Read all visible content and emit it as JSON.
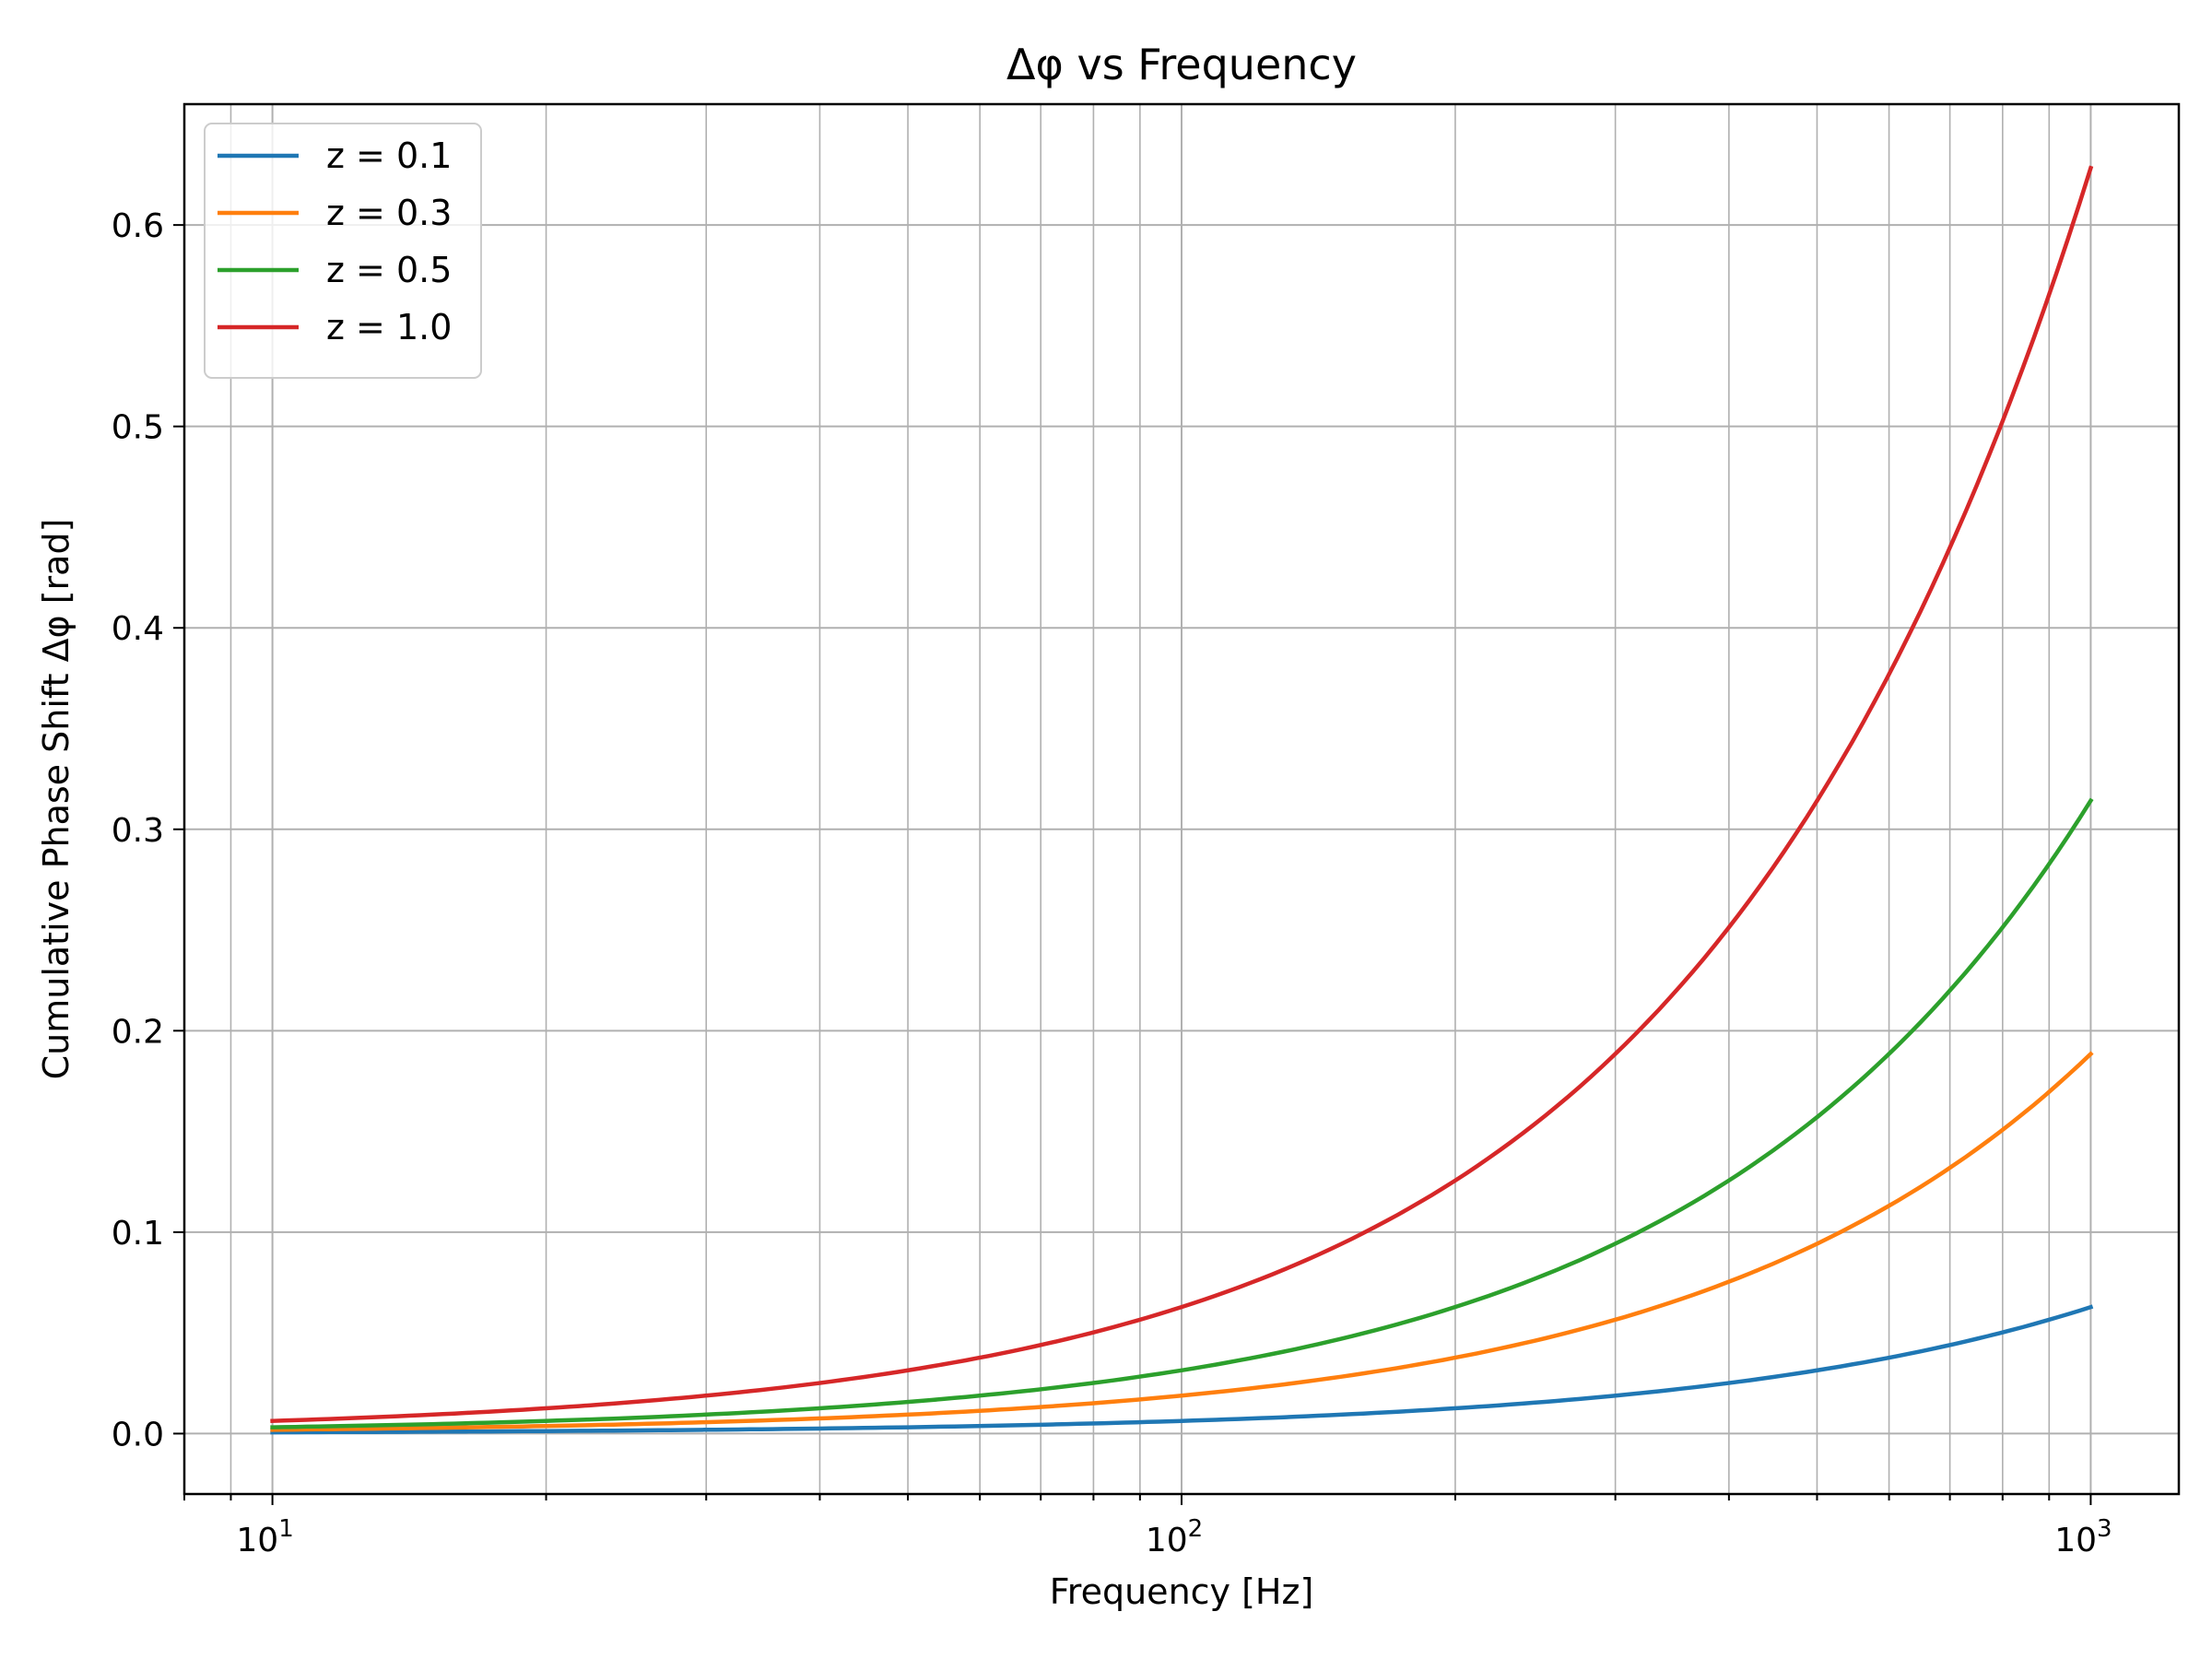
{
  "chart_data": {
    "type": "line",
    "title": "Δφ vs Frequency",
    "xlabel": "Frequency [Hz]",
    "ylabel": "Cumulative Phase Shift Δφ [rad]",
    "xscale": "log",
    "xlim": [
      8.0,
      1250.0
    ],
    "ylim": [
      -0.03,
      0.66
    ],
    "grid": "on (major and minor)",
    "legend_position": "upper-left",
    "x_ticks": [
      {
        "value": 10,
        "base": "10",
        "exp": "1"
      },
      {
        "value": 100,
        "base": "10",
        "exp": "2"
      },
      {
        "value": 1000,
        "base": "10",
        "exp": "3"
      }
    ],
    "y_ticks": [
      {
        "value": 0.0,
        "label": "0.0"
      },
      {
        "value": 0.1,
        "label": "0.1"
      },
      {
        "value": 0.2,
        "label": "0.2"
      },
      {
        "value": 0.3,
        "label": "0.3"
      },
      {
        "value": 0.4,
        "label": "0.4"
      },
      {
        "value": 0.5,
        "label": "0.5"
      },
      {
        "value": 0.6,
        "label": "0.6"
      }
    ],
    "x": [
      10,
      20,
      30,
      50,
      70,
      100,
      150,
      200,
      300,
      500,
      700,
      1000
    ],
    "series": [
      {
        "name": "z = 0.1",
        "color": "#1f77b4",
        "values": [
          0.0006,
          0.0013,
          0.0019,
          0.0031,
          0.0044,
          0.0063,
          0.0094,
          0.0126,
          0.0188,
          0.0314,
          0.044,
          0.0628
        ]
      },
      {
        "name": "z = 0.3",
        "color": "#ff7f0e",
        "values": [
          0.0019,
          0.0038,
          0.0057,
          0.0094,
          0.0132,
          0.0188,
          0.0283,
          0.0377,
          0.0565,
          0.0942,
          0.1319,
          0.1885
        ]
      },
      {
        "name": "z = 0.5",
        "color": "#2ca02c",
        "values": [
          0.0031,
          0.0063,
          0.0094,
          0.0157,
          0.022,
          0.0314,
          0.0471,
          0.0628,
          0.0942,
          0.1571,
          0.2199,
          0.3142
        ]
      },
      {
        "name": "z = 1.0",
        "color": "#d62728",
        "values": [
          0.0063,
          0.0126,
          0.0188,
          0.0314,
          0.044,
          0.0628,
          0.0942,
          0.1257,
          0.1885,
          0.3142,
          0.4398,
          0.6283
        ]
      }
    ]
  }
}
